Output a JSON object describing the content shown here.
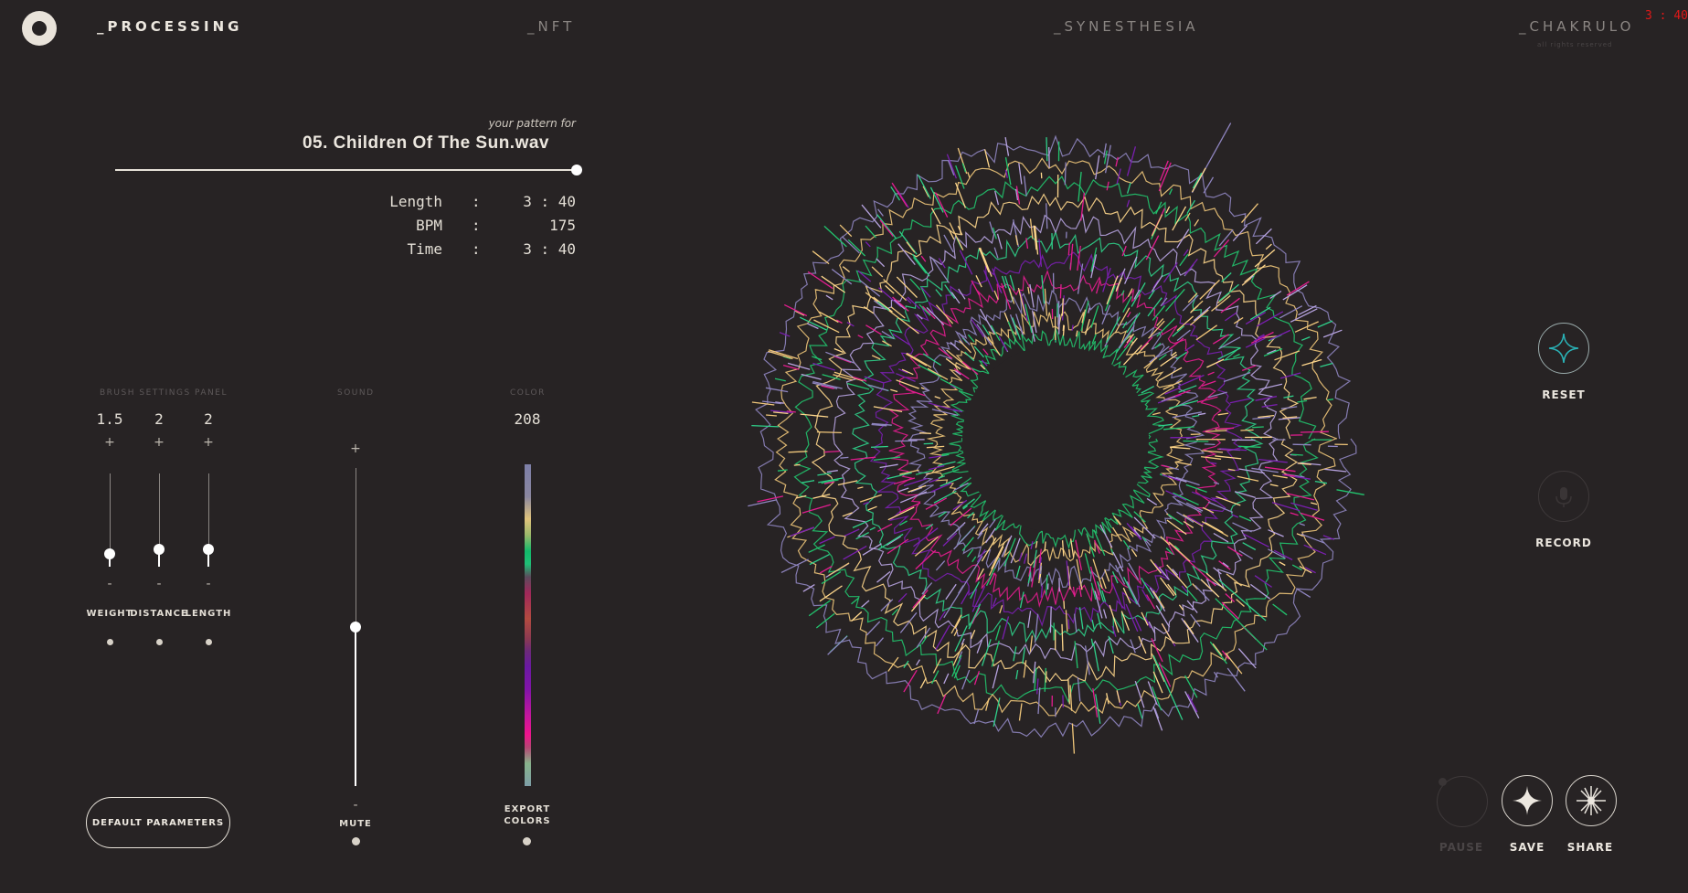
{
  "nav": {
    "items": [
      "_PROCESSING",
      "_NFT",
      "_SYNESTHESIA",
      "_CHAKRULO"
    ],
    "rights": "all rights reserved",
    "clock": "3 : 40"
  },
  "track": {
    "subtitle": "your pattern for",
    "title": "05. Children Of The Sun.wav",
    "progress": 1.0,
    "info": [
      {
        "label": "Length",
        "value": "3 : 40"
      },
      {
        "label": "BPM",
        "value": "175"
      },
      {
        "label": "Time",
        "value": "3 : 40"
      }
    ]
  },
  "brush": {
    "heading": "BRUSH SETTINGS PANEL",
    "plus": "+",
    "minus": "-",
    "sliders": [
      {
        "label": "WEIGHT",
        "value": "1.5"
      },
      {
        "label": "DISTANCE",
        "value": "2"
      },
      {
        "label": "LENGTH",
        "value": "2"
      }
    ]
  },
  "sound": {
    "heading": "SOUND",
    "plus": "+",
    "minus": "-",
    "mute_label": "MUTE",
    "level": 0.55
  },
  "color": {
    "heading": "COLOR",
    "value": "208",
    "export_label_1": "EXPORT",
    "export_label_2": "COLORS"
  },
  "buttons": {
    "default_params": "DEFAULT PARAMETERS",
    "reset": "RESET",
    "record": "RECORD",
    "pause": "PAUSE",
    "save": "SAVE",
    "share": "SHARE"
  },
  "viz": {
    "palette": [
      "#22c46e",
      "#f0c67a",
      "#8f85c0",
      "#e21d8f",
      "#7a1fb0",
      "#2fd08a",
      "#b7a3e0",
      "#ffd78c"
    ]
  }
}
